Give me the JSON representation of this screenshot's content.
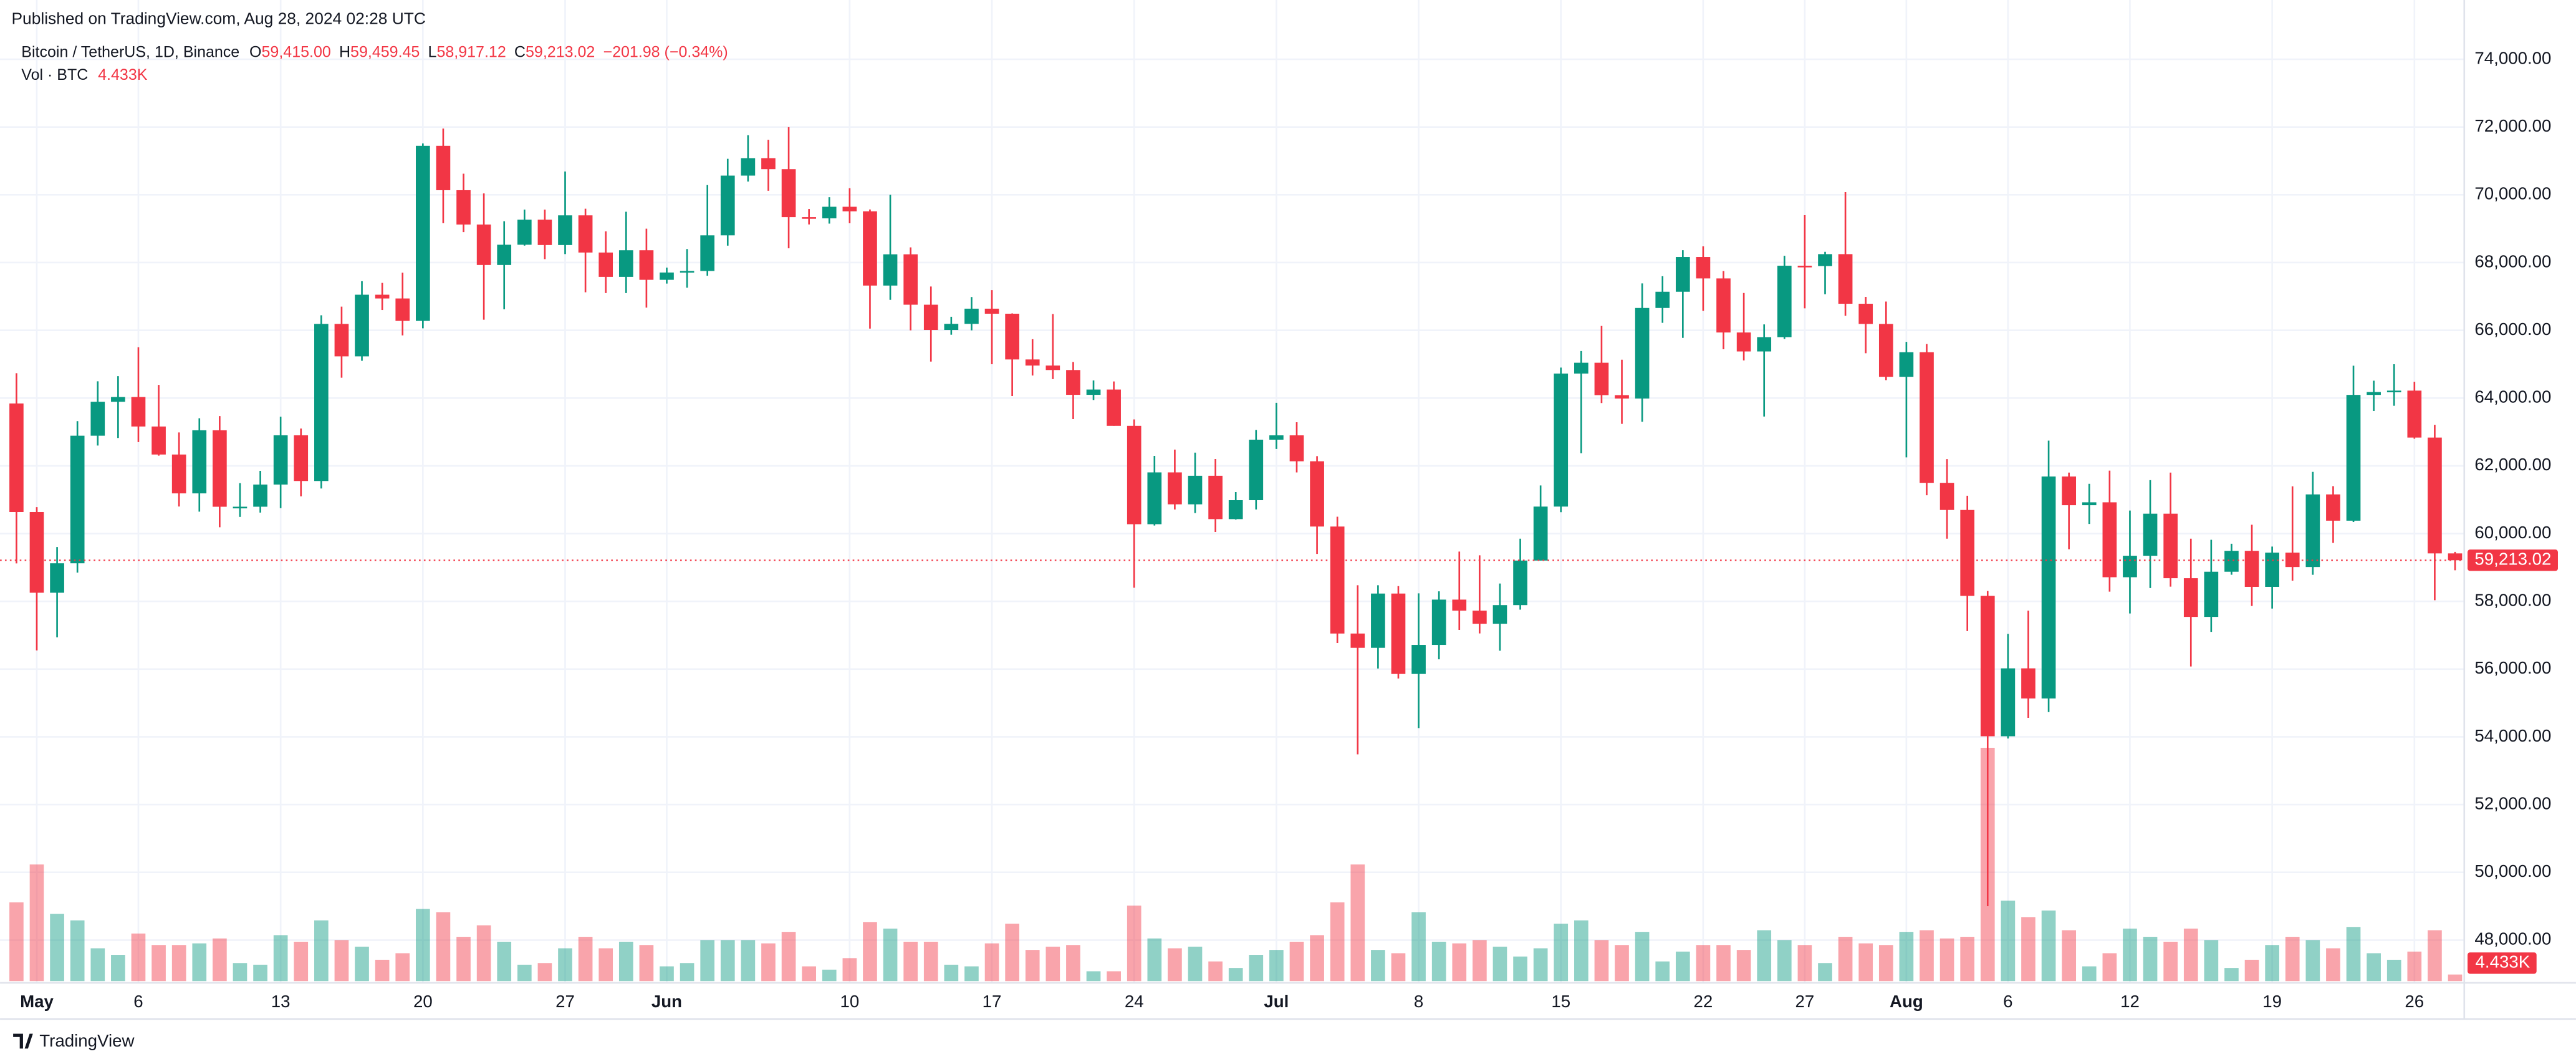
{
  "chart_data": {
    "type": "candlestick",
    "published": "Published on TradingView.com, Aug 28, 2024 02:28 UTC",
    "title": "Bitcoin / TetherUS, 1D, Binance",
    "ohlc_names": [
      "O",
      "H",
      "L",
      "C"
    ],
    "ohlc_labels": [
      "59,415.00",
      "59,459.45",
      "58,917.12",
      "59,213.02"
    ],
    "change_label": "−201.98 (−0.34%)",
    "volume_name": "Vol · BTC",
    "volume_label": "4.433K",
    "close_label": "59,213.02",
    "logo": "TradingView",
    "up_color": "#089981",
    "down_color": "#f23645",
    "grid": true,
    "categories": [
      null,
      "May",
      null,
      null,
      null,
      null,
      "6",
      null,
      null,
      null,
      null,
      null,
      null,
      "13",
      null,
      null,
      null,
      null,
      null,
      null,
      "20",
      null,
      null,
      null,
      null,
      null,
      null,
      "27",
      null,
      null,
      null,
      null,
      "Jun",
      null,
      null,
      null,
      null,
      null,
      null,
      null,
      null,
      "10",
      null,
      null,
      null,
      null,
      null,
      null,
      "17",
      null,
      null,
      null,
      null,
      null,
      null,
      "24",
      null,
      null,
      null,
      null,
      null,
      null,
      "Jul",
      null,
      null,
      null,
      null,
      null,
      null,
      "8",
      null,
      null,
      null,
      null,
      null,
      null,
      "15",
      null,
      null,
      null,
      null,
      null,
      null,
      "22",
      null,
      null,
      null,
      null,
      "27",
      null,
      null,
      null,
      null,
      "Aug",
      null,
      null,
      null,
      null,
      "6",
      null,
      null,
      null,
      null,
      null,
      "12",
      null,
      null,
      null,
      null,
      null,
      null,
      "19",
      null,
      null,
      null,
      null,
      null,
      null,
      "26",
      null,
      null
    ],
    "open": [
      63841,
      60636,
      58254,
      59123,
      62889,
      63891,
      64031,
      63161,
      62334,
      61187,
      63049,
      60793,
      60793,
      61448,
      62901,
      61552,
      66189,
      65231,
      67051,
      66940,
      66278,
      71446,
      70136,
      69122,
      67929,
      68526,
      69265,
      68518,
      69394,
      68296,
      67578,
      68364,
      67491,
      67706,
      67751,
      68804,
      70567,
      71082,
      70757,
      69342,
      69305,
      69647,
      69512,
      67321,
      68243,
      66756,
      66011,
      66191,
      66639,
      66490,
      65140,
      64960,
      64828,
      64096,
      64252,
      63180,
      60277,
      61806,
      60864,
      61706,
      60427,
      60986,
      62772,
      62900,
      62135,
      60208,
      57050,
      56628,
      58230,
      55857,
      56714,
      58051,
      57725,
      57339,
      57889,
      59204,
      60797,
      64724,
      65043,
      64087,
      63987,
      66660,
      67139,
      68165,
      67532,
      65936,
      65376,
      65799,
      67907,
      67896,
      68249,
      66784,
      66188,
      64628,
      65354,
      61498,
      60697,
      58161,
      54018,
      56022,
      55134,
      61685,
      60837,
      60923,
      58712,
      59346,
      60587,
      58683,
      57541,
      58874,
      59491,
      58427,
      59438,
      59013,
      61157,
      60381,
      64094,
      64178,
      64220,
      62834,
      59415
    ],
    "high": [
      64734,
      60780,
      59602,
      63320,
      64494,
      64646,
      65500,
      64390,
      62986,
      63404,
      63469,
      61490,
      61850,
      63450,
      63100,
      66444,
      66700,
      67450,
      67400,
      67700,
      71515,
      71956,
      70623,
      70041,
      69220,
      69563,
      69562,
      70687,
      69590,
      68920,
      69500,
      69000,
      67850,
      68400,
      70288,
      71063,
      71758,
      71625,
      71997,
      69582,
      69930,
      70195,
      69568,
      69999,
      68449,
      67294,
      66400,
      66983,
      67188,
      66500,
      65738,
      66482,
      65066,
      64520,
      64491,
      63369,
      62293,
      62480,
      62389,
      62200,
      61225,
      63058,
      63861,
      63288,
      62285,
      60498,
      58475,
      58475,
      58449,
      58236,
      58296,
      59470,
      59359,
      58526,
      59850,
      61420,
      64900,
      65388,
      66128,
      65133,
      67386,
      67598,
      68366,
      68479,
      67750,
      67102,
      66175,
      68200,
      69399,
      68318,
      70079,
      66987,
      66849,
      65659,
      65596,
      62198,
      61117,
      58305,
      57040,
      57726,
      62745,
      61800,
      61470,
      61858,
      60680,
      61578,
      61800,
      59849,
      59817,
      59700,
      60262,
      59617,
      61396,
      61820,
      61400,
      64955,
      64513,
      65000,
      64481,
      63212,
      59459.45
    ],
    "low": [
      59120,
      56552,
      56937,
      58848,
      62600,
      62822,
      62700,
      62300,
      60800,
      60648,
      60187,
      60492,
      60620,
      60750,
      61100,
      61330,
      64600,
      65100,
      66600,
      65850,
      66060,
      69162,
      68900,
      66312,
      66622,
      68500,
      68100,
      68250,
      67124,
      67100,
      67100,
      66670,
      67380,
      67257,
      67612,
      68500,
      70390,
      70119,
      68420,
      69125,
      69150,
      69160,
      66051,
      66900,
      66000,
      65078,
      65870,
      66000,
      65000,
      64060,
      64666,
      64560,
      63379,
      63943,
      63180,
      58402,
      60239,
      60712,
      60606,
      60046,
      60414,
      60712,
      62497,
      61806,
      59400,
      56771,
      53485,
      56018,
      55724,
      54260,
      56289,
      57157,
      57052,
      56542,
      57756,
      59204,
      60632,
      62373,
      63853,
      63238,
      63300,
      66222,
      65777,
      66573,
      65441,
      65111,
      63456,
      65744,
      66650,
      67066,
      66428,
      65323,
      64530,
      62248,
      61130,
      59850,
      57122,
      49000,
      53950,
      54560,
      54730,
      59538,
      60284,
      58286,
      57642,
      58392,
      58433,
      56078,
      57098,
      58785,
      57864,
      57787,
      58610,
      58783,
      59724,
      60342,
      63619,
      63773,
      62800,
      58034,
      58917.12
    ],
    "close": [
      60636,
      58254,
      59123,
      62889,
      63891,
      64031,
      63161,
      62334,
      61187,
      63049,
      60792,
      60793,
      61448,
      62901,
      61552,
      66189,
      65231,
      67051,
      66940,
      66278,
      71446,
      70136,
      69122,
      67929,
      68526,
      69265,
      68518,
      69394,
      68296,
      67578,
      68364,
      67491,
      67706,
      67751,
      68804,
      70567,
      71082,
      70757,
      69342,
      69305,
      69647,
      69512,
      67321,
      68243,
      66756,
      66011,
      66191,
      66639,
      66490,
      65140,
      64960,
      64828,
      64096,
      64252,
      63180,
      60277,
      61806,
      60864,
      61706,
      60427,
      60986,
      62772,
      62900,
      62135,
      60208,
      57050,
      56628,
      58230,
      55857,
      56714,
      58051,
      57725,
      57339,
      57889,
      59204,
      60797,
      64724,
      65043,
      64087,
      63987,
      66660,
      67139,
      68165,
      67532,
      65936,
      65376,
      65799,
      67907,
      67896,
      68249,
      66784,
      66188,
      64628,
      65354,
      61498,
      60697,
      58161,
      54018,
      56022,
      55134,
      61685,
      60837,
      60923,
      58712,
      59346,
      60587,
      58683,
      57541,
      58874,
      59491,
      58427,
      59438,
      59013,
      61157,
      60381,
      64094,
      64178,
      64220,
      62834,
      59415,
      59213.02
    ],
    "volume": [
      52800,
      78100,
      45100,
      40700,
      22000,
      17600,
      31900,
      24200,
      24200,
      25300,
      28600,
      12100,
      11000,
      30800,
      26400,
      40700,
      27500,
      23100,
      14300,
      18700,
      48400,
      46200,
      29700,
      37400,
      26400,
      11000,
      12100,
      22000,
      29700,
      22000,
      26400,
      24200,
      9900,
      12100,
      27500,
      27500,
      27500,
      25300,
      33000,
      9900,
      7700,
      15400,
      39600,
      35200,
      26400,
      26400,
      11000,
      9900,
      25300,
      38500,
      20900,
      23100,
      24200,
      6600,
      6600,
      50600,
      28600,
      22000,
      23100,
      13200,
      8800,
      17600,
      20900,
      26400,
      30800,
      52800,
      78100,
      20900,
      18700,
      46200,
      26400,
      25300,
      27500,
      23100,
      16500,
      22000,
      38500,
      40700,
      27500,
      24200,
      33000,
      13200,
      19800,
      24200,
      24200,
      20900,
      34100,
      27500,
      24200,
      12100,
      29700,
      25300,
      24200,
      33000,
      34100,
      28600,
      29700,
      156200,
      53900,
      42900,
      47300,
      34100,
      9900,
      18700,
      35200,
      29700,
      26400,
      35200,
      27500,
      8800,
      14300,
      24200,
      29700,
      27500,
      22000,
      36300,
      18700,
      14300,
      19800,
      34100,
      4433
    ],
    "ylim": [
      46740,
      74780
    ],
    "yticks": [
      {
        "value": 48000,
        "label": "48,000.00"
      },
      {
        "value": 50000,
        "label": "50,000.00"
      },
      {
        "value": 52000,
        "label": "52,000.00"
      },
      {
        "value": 54000,
        "label": "54,000.00"
      },
      {
        "value": 56000,
        "label": "56,000.00"
      },
      {
        "value": 58000,
        "label": "58,000.00"
      },
      {
        "value": 60000,
        "label": "60,000.00"
      },
      {
        "value": 62000,
        "label": "62,000.00"
      },
      {
        "value": 64000,
        "label": "64,000.00"
      },
      {
        "value": 66000,
        "label": "66,000.00"
      },
      {
        "value": 68000,
        "label": "68,000.00"
      },
      {
        "value": 70000,
        "label": "70,000.00"
      },
      {
        "value": 72000,
        "label": "72,000.00"
      },
      {
        "value": 74000,
        "label": "74,000.00"
      }
    ]
  }
}
